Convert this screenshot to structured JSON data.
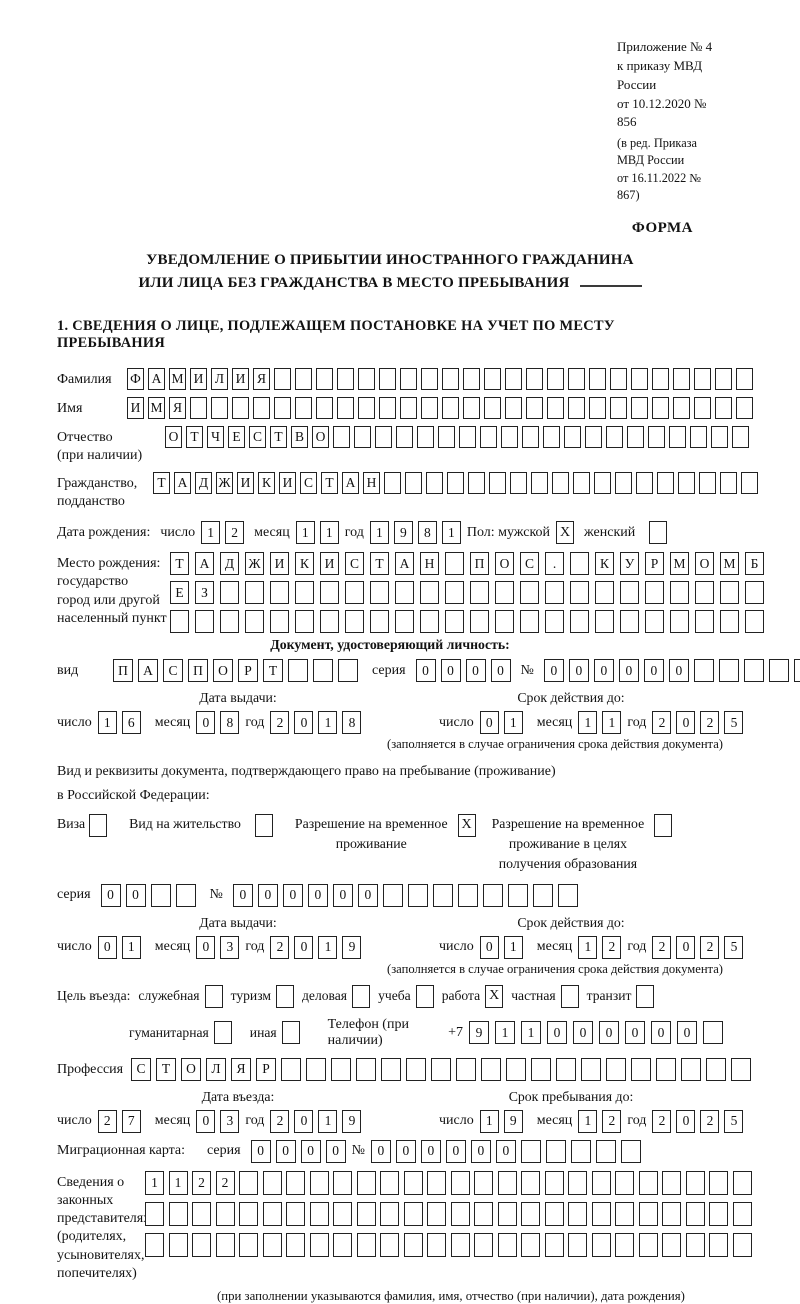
{
  "header": {
    "annex": [
      "Приложение № 4",
      "к приказу МВД России",
      "от 10.12.2020 № 856"
    ],
    "annex_note": [
      "(в ред. Приказа МВД России",
      "от 16.11.2022 № 867)"
    ],
    "forma": "ФОРМА"
  },
  "title": {
    "line1": "УВЕДОМЛЕНИЕ О ПРИБЫТИИ ИНОСТРАННОГО ГРАЖДАНИНА",
    "line2": "ИЛИ ЛИЦА БЕЗ ГРАЖДАНСТВА В МЕСТО ПРЕБЫВАНИЯ"
  },
  "section1": {
    "heading": "1. СВЕДЕНИЯ О ЛИЦЕ, ПОДЛЕЖАЩЕМ ПОСТАНОВКЕ НА УЧЕТ ПО МЕСТУ ПРЕБЫВАНИЯ"
  },
  "words": {
    "day": "число",
    "month": "месяц",
    "year": "год"
  },
  "person": {
    "surname": {
      "label": "Фамилия",
      "chars": "ФАМИЛИЯ",
      "total": 30
    },
    "given_name": {
      "label": "Имя",
      "chars": "ИМЯ",
      "total": 30
    },
    "patronymic": {
      "label": "Отчество",
      "label2": "(при наличии)",
      "chars": "ОТЧЕСТВО",
      "total": 28
    },
    "citizenship": {
      "label": "Гражданство,",
      "label2": "подданство",
      "chars": "ТАДЖИКИСТАН",
      "total": 29
    },
    "birth": {
      "label": "Дата рождения:",
      "day": "12",
      "month": "11",
      "year": "1981",
      "gender_label": "Пол: мужской",
      "male": "X",
      "female_label": "женский",
      "female": ""
    },
    "birth_place": {
      "label1": "Место рождения:",
      "label2": "государство",
      "label3": "город или другой",
      "label4": "населенный пункт",
      "row1": {
        "chars": "ТАДЖИКИСТАН ПОС. КУРМОМБ",
        "total": 24
      },
      "row2": {
        "chars": "ЕЗ",
        "total": 24
      },
      "row3": {
        "chars": "",
        "total": 24
      }
    }
  },
  "identity_doc": {
    "heading": "Документ, удостоверяющий личность:",
    "type_label": "вид",
    "type": {
      "chars": "ПАСПОРТ",
      "total": 10
    },
    "series_label": "серия",
    "series": {
      "chars": "0000",
      "total": 4
    },
    "number_label": "№",
    "number": {
      "chars": "000000",
      "total": 11
    },
    "issue_label": "Дата выдачи:",
    "issue_day": "16",
    "issue_month": "08",
    "issue_year": "2018",
    "valid_label": "Срок действия до:",
    "valid_day": "01",
    "valid_month": "11",
    "valid_year": "2025",
    "note": "(заполняется в случае ограничения срока действия документа)"
  },
  "residence_doc": {
    "intro1": "Вид и реквизиты документа, подтверждающего право на пребывание (проживание)",
    "intro2": "в Российской Федерации:",
    "options": [
      {
        "lines": [
          "Виза"
        ],
        "checked": ""
      },
      {
        "lines": [
          "Вид на жительство"
        ],
        "checked": ""
      },
      {
        "lines": [
          "Разрешение на временное",
          "проживание"
        ],
        "checked": "X"
      },
      {
        "lines": [
          "Разрешение на временное",
          "проживание в целях",
          "получения образования"
        ],
        "checked": ""
      }
    ],
    "series_label": "серия",
    "series": {
      "chars": "00",
      "total": 4
    },
    "number_label": "№",
    "number": {
      "chars": "000000",
      "total": 14
    },
    "issue_label": "Дата выдачи:",
    "issue_day": "01",
    "issue_month": "03",
    "issue_year": "2019",
    "valid_label": "Срок действия до:",
    "valid_day": "01",
    "valid_month": "12",
    "valid_year": "2025",
    "note": "(заполняется в случае ограничения срока действия документа)"
  },
  "visit": {
    "purpose_label": "Цель въезда:",
    "purposes": [
      {
        "label": "служебная",
        "checked": ""
      },
      {
        "label": "туризм",
        "checked": ""
      },
      {
        "label": "деловая",
        "checked": ""
      },
      {
        "label": "учеба",
        "checked": ""
      },
      {
        "label": "работа",
        "checked": "X"
      },
      {
        "label": "частная",
        "checked": ""
      },
      {
        "label": "транзит",
        "checked": ""
      },
      {
        "label": "гуманитарная",
        "checked": ""
      },
      {
        "label": "иная",
        "checked": ""
      }
    ],
    "phone_label": "Телефон (при наличии)",
    "phone_prefix": "+7",
    "phone": {
      "chars": "911000000",
      "total": 10
    },
    "profession_label": "Профессия",
    "profession": {
      "chars": "СТОЛЯР",
      "total": 25
    },
    "entry_label": "Дата въезда:",
    "entry_day": "27",
    "entry_month": "03",
    "entry_year": "2019",
    "stay_label": "Срок пребывания до:",
    "stay_day": "19",
    "stay_month": "12",
    "stay_year": "2025",
    "migration_label": "Миграционная карта:",
    "mig_series_label": "серия",
    "mig_series": {
      "chars": "0000",
      "total": 4
    },
    "mig_number_label": "№",
    "mig_number": {
      "chars": "000000",
      "total": 11
    }
  },
  "representatives": {
    "label_lines": [
      "Сведения о",
      "законных",
      "представителях",
      "(родителях,",
      "усыновителях,",
      "попечителях)"
    ],
    "row1": {
      "chars": "1122",
      "total": 26
    },
    "row2": {
      "chars": "",
      "total": 26
    },
    "row3": {
      "chars": "",
      "total": 26
    },
    "note": "(при заполнении указываются фамилия, имя, отчество (при наличии), дата рождения)"
  }
}
